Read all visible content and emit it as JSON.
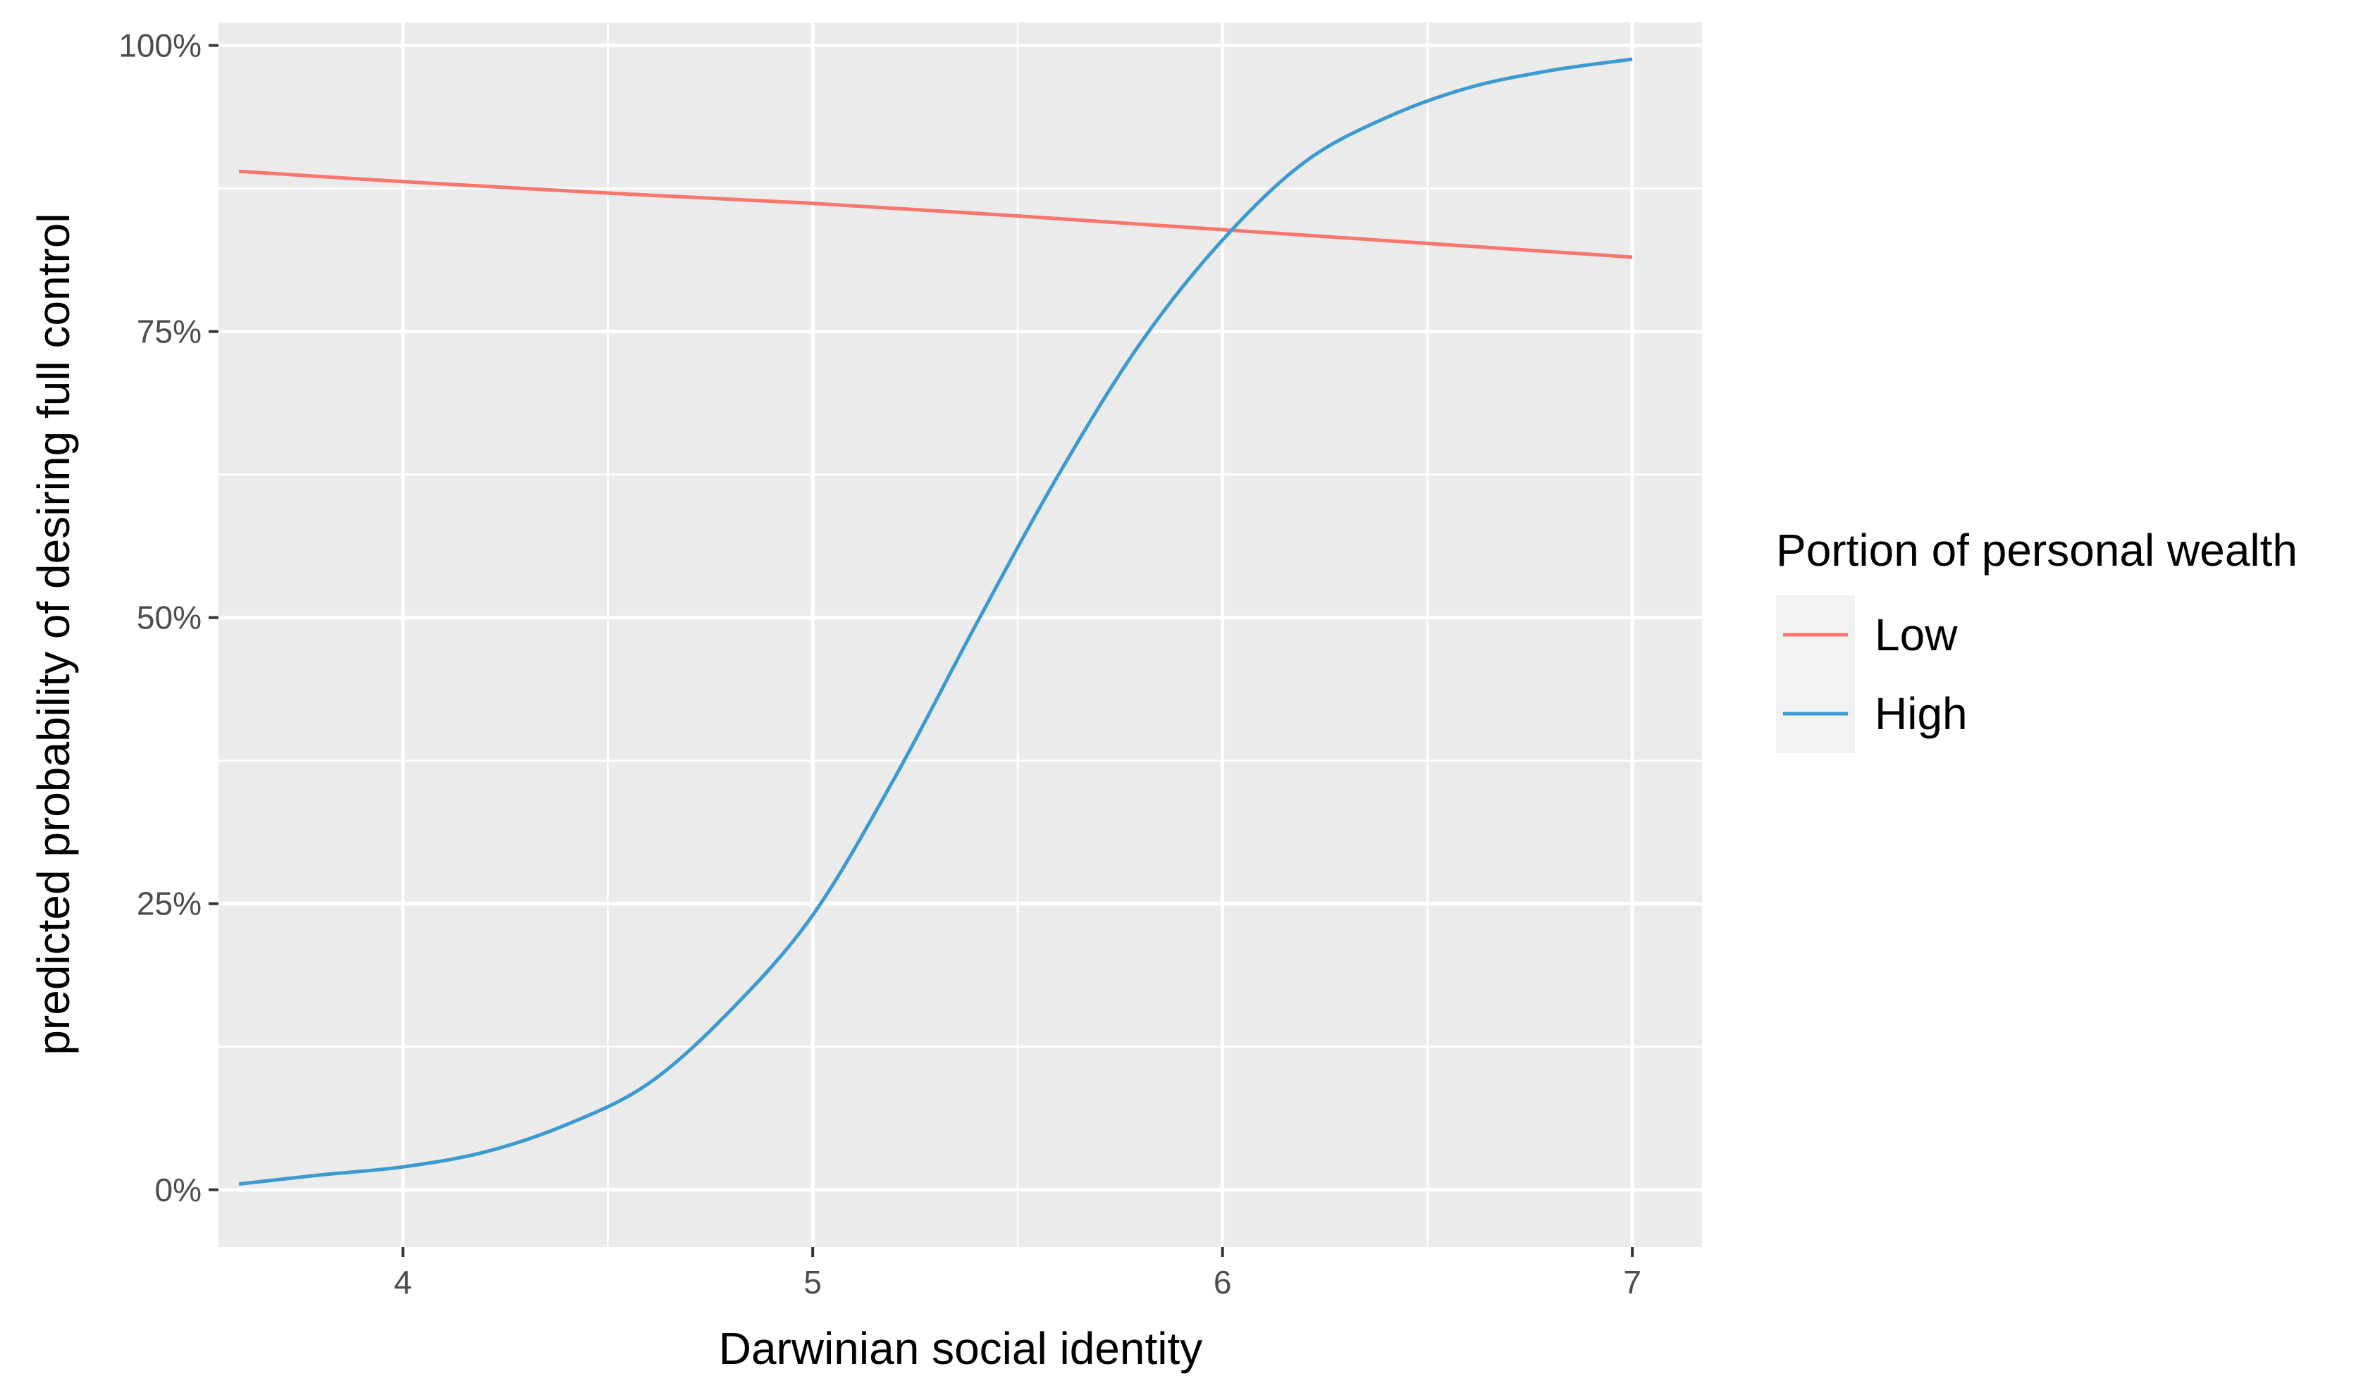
{
  "chart_data": {
    "type": "line",
    "title": "",
    "xlabel": "Darwinian social identity",
    "ylabel": "predicted probability of desiring full control",
    "xlim": [
      3.55,
      7.17
    ],
    "ylim": [
      -0.05,
      1.02
    ],
    "x_ticks": [
      4,
      5,
      6,
      7
    ],
    "x_tick_labels": [
      "4",
      "5",
      "6",
      "7"
    ],
    "y_ticks": [
      0,
      0.25,
      0.5,
      0.75,
      1
    ],
    "y_tick_labels": [
      "0%",
      "25%",
      "50%",
      "75%",
      "100%"
    ],
    "grid": true,
    "legend": {
      "title": "Portion of personal wealth",
      "placement": "right"
    },
    "series": [
      {
        "name": "Low",
        "color": "#F8766D",
        "x": [
          3.6,
          4.0,
          4.5,
          5.0,
          5.5,
          6.0,
          6.5,
          7.0
        ],
        "y": [
          0.89,
          0.881,
          0.871,
          0.862,
          0.851,
          0.839,
          0.827,
          0.815
        ]
      },
      {
        "name": "High",
        "color": "#3C9AD0",
        "x": [
          3.6,
          3.8,
          4.0,
          4.2,
          4.4,
          4.6,
          4.8,
          5.0,
          5.2,
          5.4,
          5.6,
          5.8,
          6.0,
          6.2,
          6.4,
          6.6,
          6.8,
          7.0
        ],
        "y": [
          0.005,
          0.013,
          0.02,
          0.033,
          0.057,
          0.093,
          0.157,
          0.24,
          0.36,
          0.495,
          0.625,
          0.74,
          0.83,
          0.898,
          0.937,
          0.963,
          0.978,
          0.988
        ]
      }
    ]
  }
}
